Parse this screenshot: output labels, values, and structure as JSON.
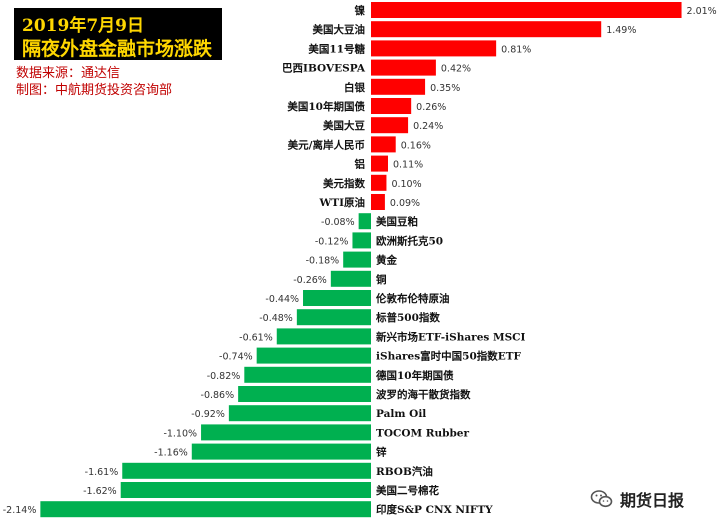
{
  "header": {
    "title_line1": "2019年7月9日",
    "title_line2": "隔夜外盘金融市场涨跌",
    "source": "数据来源：通达信",
    "maker": "制图：中航期货投资咨询部"
  },
  "watermark": {
    "text": "期货日报",
    "icon": "wechat-icon"
  },
  "colors": {
    "positive": "#ff0000",
    "negative": "#00b050",
    "title_bg": "#000000",
    "title_text": "#ffd700",
    "meta_text": "#c00000"
  },
  "chart_data": {
    "type": "bar",
    "orientation": "horizontal",
    "categories": [
      "镍",
      "美国大豆油",
      "美国11号糖",
      "巴西IBOVESPA",
      "白银",
      "美国10年期国债",
      "美国大豆",
      "美元/离岸人民币",
      "铝",
      "美元指数",
      "WTI原油",
      "美国豆粕",
      "欧洲斯托克50",
      "黄金",
      "铜",
      "伦敦布伦特原油",
      "标普500指数",
      "新兴市场ETF-iShares MSCI",
      "iShares富时中国50指数ETF",
      "德国10年期国债",
      "波罗的海干散货指数",
      "Palm Oil",
      "TOCOM Rubber",
      "锌",
      "RBOB汽油",
      "美国二号棉花",
      "印度S&P CNX NIFTY"
    ],
    "values": [
      2.01,
      1.49,
      0.81,
      0.42,
      0.35,
      0.26,
      0.24,
      0.16,
      0.11,
      0.1,
      0.09,
      -0.08,
      -0.12,
      -0.18,
      -0.26,
      -0.44,
      -0.48,
      -0.61,
      -0.74,
      -0.82,
      -0.86,
      -0.92,
      -1.1,
      -1.16,
      -1.61,
      -1.62,
      -2.14
    ],
    "labels": [
      "2.01%",
      "1.49%",
      "0.81%",
      "0.42%",
      "0.35%",
      "0.26%",
      "0.24%",
      "0.16%",
      "0.11%",
      "0.10%",
      "0.09%",
      "-0.08%",
      "-0.12%",
      "-0.18%",
      "-0.26%",
      "-0.44%",
      "-0.48%",
      "-0.61%",
      "-0.74%",
      "-0.82%",
      "-0.86%",
      "-0.92%",
      "-1.10%",
      "-1.16%",
      "-1.61%",
      "-1.62%",
      "-2.14%"
    ],
    "unit": "%",
    "grid": false,
    "legend": "none"
  }
}
